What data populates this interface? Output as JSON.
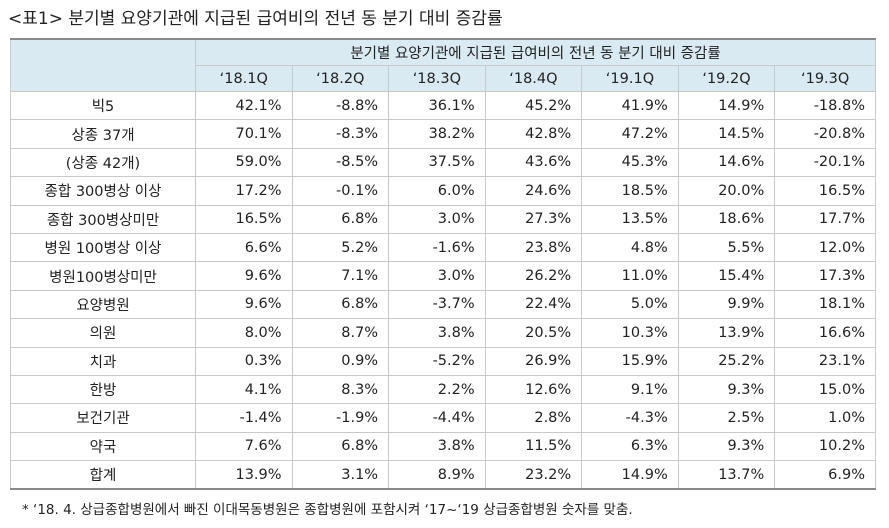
{
  "title": "<표1> 분기별 요양기관에 지급된 급여비의 전년 동 분기 대비 증감률",
  "table": {
    "header_group": "분기별 요양기관에 지급된 급여비의 전년 동 분기 대비 증감률",
    "columns": [
      "‘18.1Q",
      "‘18.2Q",
      "‘18.3Q",
      "‘18.4Q",
      "‘19.1Q",
      "‘19.2Q",
      "‘19.3Q"
    ],
    "rows": [
      [
        "빅5",
        "42.1%",
        "-8.8%",
        "36.1%",
        "45.2%",
        "41.9%",
        "14.9%",
        "-18.8%"
      ],
      [
        "상종 37개",
        "70.1%",
        "-8.3%",
        "38.2%",
        "42.8%",
        "47.2%",
        "14.5%",
        "-20.8%"
      ],
      [
        "(상종 42개)",
        "59.0%",
        "-8.5%",
        "37.5%",
        "43.6%",
        "45.3%",
        "14.6%",
        "-20.1%"
      ],
      [
        "종합 300병상 이상",
        "17.2%",
        "-0.1%",
        "6.0%",
        "24.6%",
        "18.5%",
        "20.0%",
        "16.5%"
      ],
      [
        "종합 300병상미만",
        "16.5%",
        "6.8%",
        "3.0%",
        "27.3%",
        "13.5%",
        "18.6%",
        "17.7%"
      ],
      [
        "병원 100병상 이상",
        "6.6%",
        "5.2%",
        "-1.6%",
        "23.8%",
        "4.8%",
        "5.5%",
        "12.0%"
      ],
      [
        "병원100병상미만",
        "9.6%",
        "7.1%",
        "3.0%",
        "26.2%",
        "11.0%",
        "15.4%",
        "17.3%"
      ],
      [
        "요양병원",
        "9.6%",
        "6.8%",
        "-3.7%",
        "22.4%",
        "5.0%",
        "9.9%",
        "18.1%"
      ],
      [
        "의원",
        "8.0%",
        "8.7%",
        "3.8%",
        "20.5%",
        "10.3%",
        "13.9%",
        "16.6%"
      ],
      [
        "치과",
        "0.3%",
        "0.9%",
        "-5.2%",
        "26.9%",
        "15.9%",
        "25.2%",
        "23.1%"
      ],
      [
        "한방",
        "4.1%",
        "8.3%",
        "2.2%",
        "12.6%",
        "9.1%",
        "9.3%",
        "15.0%"
      ],
      [
        "보건기관",
        "-1.4%",
        "-1.9%",
        "-4.4%",
        "2.8%",
        "-4.3%",
        "2.5%",
        "1.0%"
      ],
      [
        "약국",
        "7.6%",
        "6.8%",
        "3.8%",
        "11.5%",
        "6.3%",
        "9.3%",
        "10.2%"
      ],
      [
        "합계",
        "13.9%",
        "3.1%",
        "8.9%",
        "23.2%",
        "14.9%",
        "13.7%",
        "6.9%"
      ]
    ]
  },
  "footnote": "* ‘18. 4. 상급종합병원에서 빠진 이대목동병원은 종합병원에 포함시켜 ‘17~‘19 상급종합병원 숫자를 맞춤."
}
